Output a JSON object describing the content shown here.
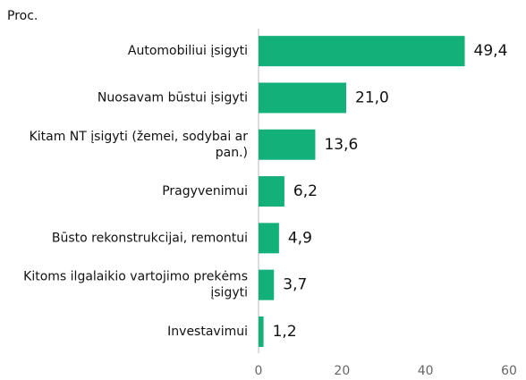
{
  "chart_data": {
    "type": "bar",
    "orientation": "horizontal",
    "axis_label": "Proc.",
    "categories": [
      "Automobiliui įsigyti",
      "Nuosavam būstui įsigyti",
      "Kitam NT įsigyti (žemei, sodybai ar pan.)",
      "Pragyvenimui",
      "Būsto rekonstrukcijai, remontui",
      "Kitoms ilgalaikio vartojimo prekėms įsigyti",
      "Investavimui"
    ],
    "values": [
      49.4,
      21.0,
      13.6,
      6.2,
      4.9,
      3.7,
      1.2
    ],
    "value_labels": [
      "49,4",
      "21,0",
      "13,6",
      "6,2",
      "4,9",
      "3,7",
      "1,2"
    ],
    "color": "#13b07a",
    "xlim": [
      0,
      60
    ],
    "xticks": [
      0,
      20,
      40,
      60
    ],
    "grid": false
  }
}
